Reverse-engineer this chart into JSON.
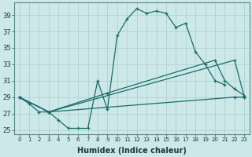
{
  "title": "",
  "xlabel": "Humidex (Indice chaleur)",
  "background_color": "#cce8e8",
  "grid_color": "#aacccc",
  "line_color": "#1a6b6b",
  "xlim": [
    -0.5,
    23.5
  ],
  "ylim": [
    24.5,
    40.5
  ],
  "xticks": [
    0,
    1,
    2,
    3,
    4,
    5,
    6,
    7,
    8,
    9,
    10,
    11,
    12,
    13,
    14,
    15,
    16,
    17,
    18,
    19,
    20,
    21,
    22,
    23
  ],
  "yticks": [
    25,
    27,
    29,
    31,
    33,
    35,
    37,
    39
  ],
  "curves_data": {
    "curve1_x": [
      0,
      1,
      2,
      3,
      4,
      5,
      6,
      7,
      8,
      9,
      10,
      11,
      12,
      13,
      14,
      15,
      16,
      17,
      18,
      19,
      20,
      21
    ],
    "curve1_y": [
      29.0,
      28.2,
      27.2,
      27.2,
      26.2,
      25.2,
      25.2,
      25.2,
      31.0,
      27.5,
      36.5,
      38.5,
      39.8,
      39.2,
      39.5,
      39.2,
      37.5,
      38.0,
      34.5,
      33.0,
      31.0,
      30.5
    ],
    "curve2_x": [
      0,
      3,
      22,
      23
    ],
    "curve2_y": [
      29.0,
      27.2,
      29.0,
      29.0
    ],
    "curve3_x": [
      0,
      3,
      22,
      23
    ],
    "curve3_y": [
      29.0,
      27.2,
      33.5,
      29.0
    ],
    "curve4_x": [
      0,
      3,
      9,
      20,
      21,
      22,
      23
    ],
    "curve4_y": [
      29.0,
      27.2,
      29.5,
      33.5,
      31.0,
      30.0,
      29.2
    ]
  }
}
